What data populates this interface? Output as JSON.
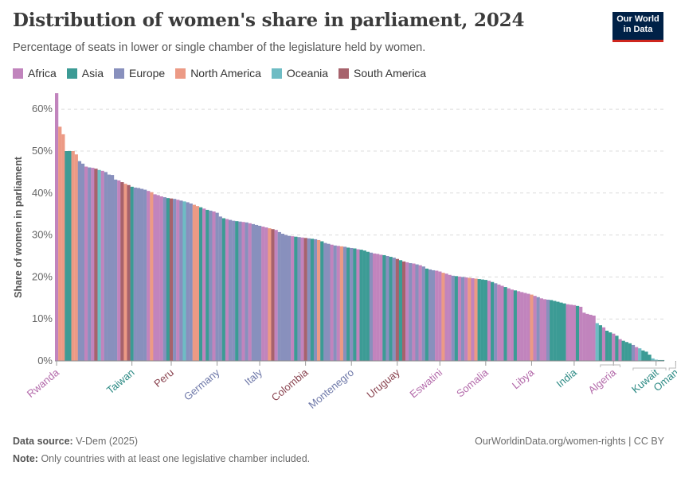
{
  "header": {
    "title": "Distribution of women's share in parliament, 2024",
    "subtitle": "Percentage of seats in lower or single chamber of the legislature held by women.",
    "logo_line1": "Our World",
    "logo_line2": "in Data"
  },
  "legend": [
    {
      "label": "Africa",
      "color": "#c184bd"
    },
    {
      "label": "Asia",
      "color": "#3c9b95"
    },
    {
      "label": "Europe",
      "color": "#8890bd"
    },
    {
      "label": "North America",
      "color": "#ec9a85"
    },
    {
      "label": "Oceania",
      "color": "#6ebcc4"
    },
    {
      "label": "South America",
      "color": "#a7626c"
    }
  ],
  "footer": {
    "source_label": "Data source:",
    "source_value": "V-Dem (2025)",
    "url_license": "OurWorldinData.org/women-rights | CC BY",
    "note_label": "Note:",
    "note_value": "Only countries with at least one legislative chamber included."
  },
  "chart_data": {
    "type": "bar",
    "ylabel": "Share of women in parliament",
    "ylim": [
      0,
      65
    ],
    "yticks": [
      0,
      10,
      20,
      30,
      40,
      50,
      60
    ],
    "ytick_labels": [
      "0%",
      "10%",
      "20%",
      "30%",
      "40%",
      "50%",
      "60%"
    ],
    "region_colors": {
      "Af": "#c184bd",
      "As": "#3c9b95",
      "Eu": "#8890bd",
      "NA": "#ec9a85",
      "Oc": "#6ebcc4",
      "SA": "#a7626c"
    },
    "labeled_countries": [
      {
        "name": "Rwanda",
        "index": 0,
        "color": "#b36aaa"
      },
      {
        "name": "Taiwan",
        "index": 23,
        "color": "#2c8a84"
      },
      {
        "name": "Peru",
        "index": 35,
        "color": "#8a4450"
      },
      {
        "name": "Germany",
        "index": 49,
        "color": "#6d77a8"
      },
      {
        "name": "Italy",
        "index": 62,
        "color": "#6d77a8"
      },
      {
        "name": "Colombia",
        "index": 76,
        "color": "#8a4450"
      },
      {
        "name": "Montenegro",
        "index": 90,
        "color": "#6d77a8"
      },
      {
        "name": "Uruguay",
        "index": 104,
        "color": "#8a4450"
      },
      {
        "name": "Eswatini",
        "index": 117,
        "color": "#b36aaa"
      },
      {
        "name": "Somalia",
        "index": 131,
        "color": "#b36aaa"
      },
      {
        "name": "Libya",
        "index": 145,
        "color": "#b36aaa"
      },
      {
        "name": "India",
        "index": 158,
        "color": "#2c8a84"
      },
      {
        "name": "Algeria",
        "index": 170,
        "color": "#b36aaa"
      },
      {
        "name": "Kuwait",
        "index": 183,
        "color": "#2c8a84"
      },
      {
        "name": "Oman",
        "index": 189,
        "color": "#2c8a84"
      }
    ],
    "regions": [
      "Af",
      "NA",
      "NA",
      "As",
      "As",
      "NA",
      "NA",
      "Eu",
      "Eu",
      "Af",
      "Eu",
      "Af",
      "SA",
      "Oc",
      "Af",
      "Eu",
      "Eu",
      "Eu",
      "Eu",
      "Af",
      "SA",
      "NA",
      "SA",
      "As",
      "Eu",
      "Eu",
      "Eu",
      "Eu",
      "Af",
      "NA",
      "Af",
      "Af",
      "Af",
      "Eu",
      "As",
      "SA",
      "Eu",
      "Af",
      "Eu",
      "Oc",
      "Eu",
      "Eu",
      "NA",
      "NA",
      "As",
      "Af",
      "As",
      "Eu",
      "Af",
      "Eu",
      "Eu",
      "As",
      "Af",
      "Eu",
      "Eu",
      "As",
      "Eu",
      "Af",
      "Eu",
      "Af",
      "Eu",
      "Eu",
      "Eu",
      "Af",
      "Af",
      "NA",
      "SA",
      "Af",
      "Eu",
      "Eu",
      "Eu",
      "Eu",
      "Af",
      "As",
      "Eu",
      "Af",
      "SA",
      "Eu",
      "As",
      "Eu",
      "NA",
      "As",
      "Eu",
      "Eu",
      "Af",
      "Eu",
      "Af",
      "NA",
      "Eu",
      "As",
      "Eu",
      "As",
      "Af",
      "As",
      "As",
      "As",
      "Eu",
      "Af",
      "Af",
      "Af",
      "As",
      "Eu",
      "As",
      "Eu",
      "SA",
      "As",
      "SA",
      "Af",
      "Eu",
      "Af",
      "Eu",
      "Af",
      "Eu",
      "As",
      "Eu",
      "Eu",
      "Af",
      "Af",
      "NA",
      "Af",
      "Af",
      "Eu",
      "As",
      "Af",
      "Eu",
      "Af",
      "NA",
      "Af",
      "NA",
      "As",
      "As",
      "As",
      "Af",
      "As",
      "Eu",
      "Af",
      "Af",
      "As",
      "Af",
      "Af",
      "As",
      "Af",
      "Af",
      "Af",
      "Af",
      "NA",
      "Af",
      "Eu",
      "Af",
      "Af",
      "Eu",
      "As",
      "As",
      "As",
      "As",
      "As",
      "Af",
      "Af",
      "Af",
      "As",
      "Af",
      "Af",
      "Af",
      "Af",
      "Af",
      "Oc",
      "As",
      "Af",
      "As",
      "As",
      "Af",
      "As",
      "Af",
      "As",
      "As",
      "As",
      "Eu",
      "Af",
      "Oc",
      "As",
      "As",
      "As",
      "Oc",
      "Oc",
      "As",
      "As",
      "As",
      "As",
      "As"
    ],
    "values": [
      63.8,
      55.8,
      54.0,
      50.0,
      50.0,
      50.0,
      49.2,
      47.6,
      47.0,
      46.3,
      46.1,
      46.0,
      45.8,
      45.5,
      45.3,
      45.0,
      44.4,
      44.3,
      43.2,
      43.0,
      42.6,
      42.2,
      41.9,
      41.5,
      41.3,
      41.2,
      41.0,
      40.8,
      40.5,
      40.2,
      39.7,
      39.5,
      39.2,
      39.0,
      38.8,
      38.7,
      38.6,
      38.4,
      38.2,
      38.0,
      37.8,
      37.5,
      37.2,
      36.9,
      36.6,
      36.3,
      36.0,
      35.8,
      35.6,
      35.3,
      34.4,
      34.0,
      33.8,
      33.6,
      33.4,
      33.3,
      33.2,
      33.1,
      33.0,
      32.8,
      32.6,
      32.4,
      32.2,
      32.0,
      31.8,
      31.6,
      31.4,
      31.2,
      30.7,
      30.3,
      30.0,
      29.8,
      29.7,
      29.6,
      29.5,
      29.4,
      29.3,
      29.2,
      29.1,
      29.0,
      28.8,
      28.5,
      28.1,
      27.9,
      27.7,
      27.5,
      27.4,
      27.3,
      27.2,
      27.0,
      26.9,
      26.8,
      26.6,
      26.5,
      26.3,
      26.0,
      25.8,
      25.6,
      25.5,
      25.3,
      25.2,
      25.0,
      24.8,
      24.6,
      24.3,
      24.0,
      23.7,
      23.5,
      23.3,
      23.2,
      23.0,
      22.8,
      22.5,
      22.0,
      21.8,
      21.6,
      21.5,
      21.3,
      21.0,
      20.8,
      20.5,
      20.3,
      20.2,
      20.1,
      20.0,
      19.9,
      19.8,
      19.7,
      19.6,
      19.5,
      19.4,
      19.3,
      19.1,
      18.8,
      18.5,
      18.2,
      17.9,
      17.6,
      17.3,
      17.0,
      16.8,
      16.6,
      16.4,
      16.2,
      16.0,
      15.8,
      15.5,
      15.2,
      14.9,
      14.7,
      14.6,
      14.5,
      14.3,
      14.1,
      13.9,
      13.7,
      13.5,
      13.4,
      13.3,
      13.1,
      12.9,
      11.5,
      11.2,
      11.0,
      10.8,
      9.0,
      8.5,
      8.0,
      7.2,
      6.8,
      6.5,
      6.0,
      5.2,
      4.8,
      4.5,
      4.2,
      3.8,
      3.3,
      3.0,
      2.5,
      2.2,
      1.5,
      0.6,
      0.3,
      0.2,
      0.2
    ]
  }
}
